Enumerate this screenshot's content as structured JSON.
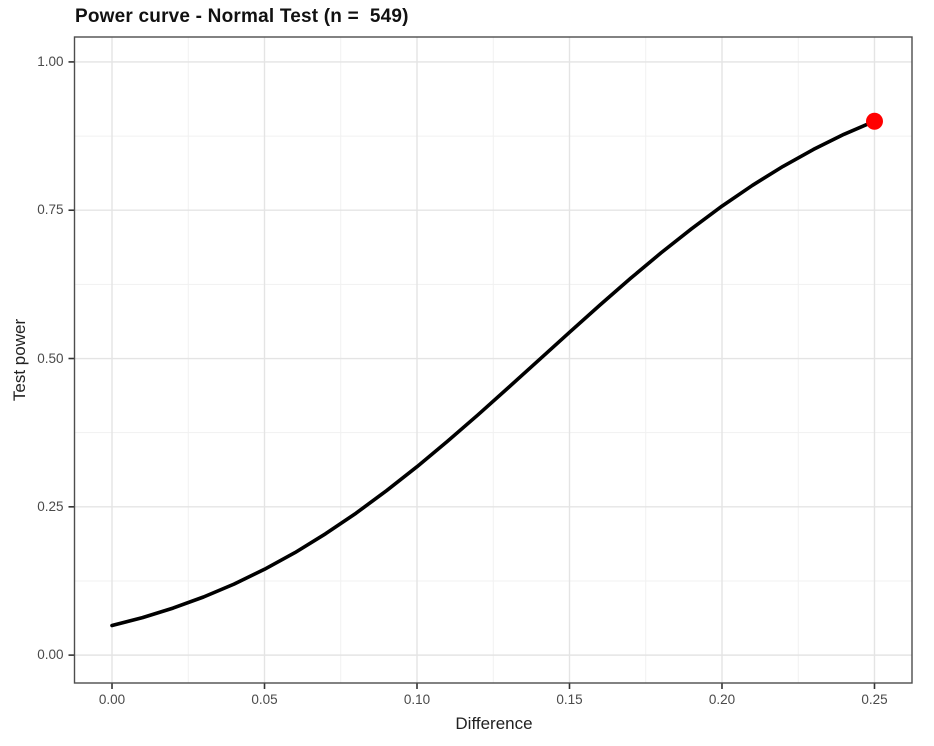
{
  "chart_data": {
    "type": "line",
    "title": "Power curve - Normal Test (n =  549)",
    "xlabel": "Difference",
    "ylabel": "Test power",
    "x_ticks": [
      "0.00",
      "0.05",
      "0.10",
      "0.15",
      "0.20",
      "0.25"
    ],
    "y_ticks": [
      "0.00",
      "0.25",
      "0.50",
      "0.75",
      "1.00"
    ],
    "xlim": [
      -0.0123,
      0.2623
    ],
    "ylim": [
      -0.047,
      1.042
    ],
    "grid": "major-and-minor",
    "legend": "none",
    "series": [
      {
        "name": "power-curve",
        "x": [
          0.0,
          0.01,
          0.02,
          0.03,
          0.04,
          0.05,
          0.06,
          0.07,
          0.08,
          0.09,
          0.1,
          0.11,
          0.12,
          0.13,
          0.14,
          0.15,
          0.16,
          0.17,
          0.18,
          0.19,
          0.2,
          0.21,
          0.22,
          0.23,
          0.24,
          0.25
        ],
        "y": [
          0.05,
          0.0633,
          0.0792,
          0.0979,
          0.1197,
          0.1446,
          0.1729,
          0.2045,
          0.2393,
          0.2771,
          0.3176,
          0.3605,
          0.4051,
          0.4511,
          0.4976,
          0.5442,
          0.5902,
          0.635,
          0.678,
          0.7187,
          0.7569,
          0.792,
          0.8239,
          0.8526,
          0.878,
          0.9
        ],
        "color": "#000000",
        "width": 3.6
      }
    ],
    "highlight_point": {
      "x": 0.25,
      "y": 0.9,
      "color": "#FF0000",
      "radius": 8.5
    },
    "colors": {
      "panel_background": "#FFFFFF",
      "panel_border": "#4d4d4d",
      "grid_major": "#E4E4E4",
      "grid_minor": "#F1F1F1",
      "tick_mark": "#333333",
      "tick_text": "#4a4a4a",
      "axis_title_text": "#222222",
      "title_text": "#111111"
    }
  }
}
